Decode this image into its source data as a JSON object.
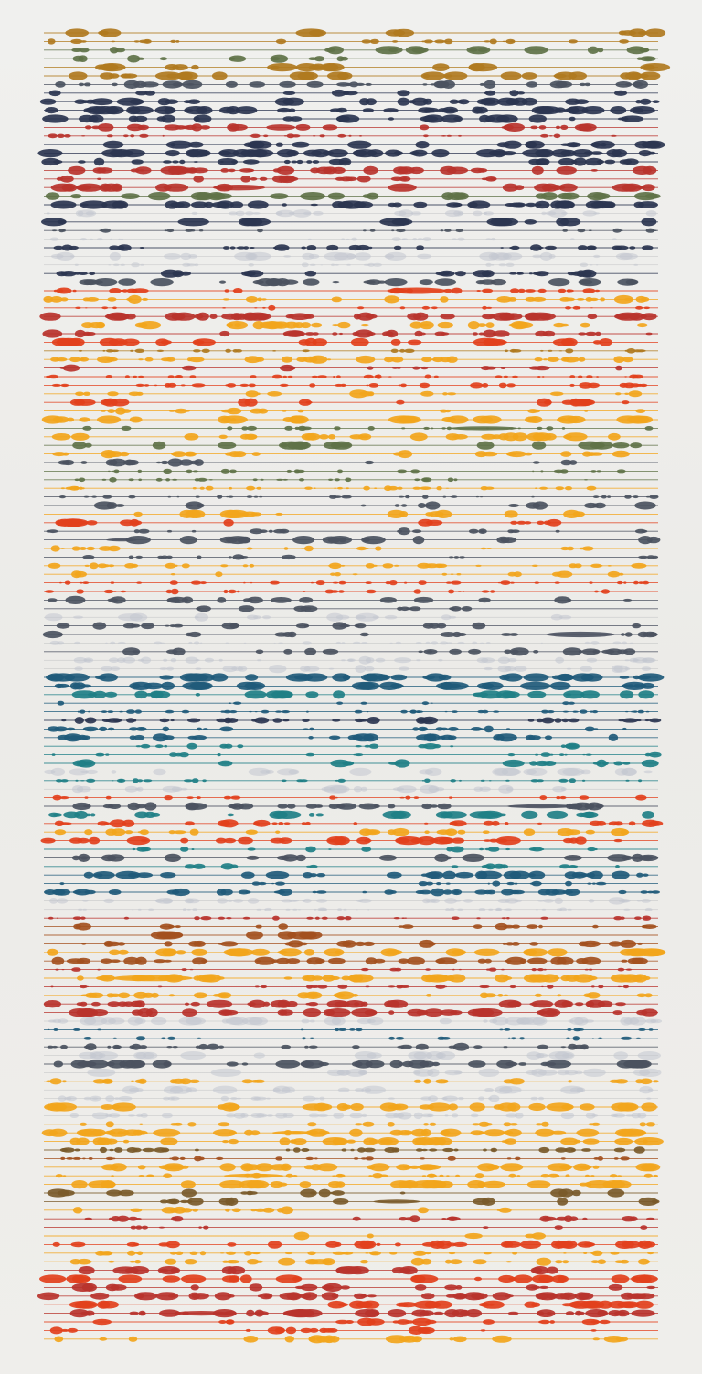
{
  "artwork": {
    "kind": "ink-on-paper",
    "description_visible_text": "",
    "palette": {
      "paper": "#efeeeb",
      "navy": "#2b3550",
      "slate": "#4b5260",
      "olive": "#5f7248",
      "ochre": "#b07a1f",
      "amber": "#f2a51c",
      "vermilion": "#e2401c",
      "crimson": "#b8332c",
      "rust": "#a3501e",
      "teal": "#1f7f86",
      "petrol": "#1f5a7a",
      "ghost": "#c3c6cf",
      "umber": "#7a5a2a"
    },
    "bands": [
      {
        "name": "upper-dark-greens",
        "colors": [
          "navy",
          "olive",
          "ochre",
          "slate"
        ]
      },
      {
        "name": "upper-warm-mix",
        "colors": [
          "amber",
          "crimson",
          "navy",
          "olive"
        ]
      },
      {
        "name": "middle-ghost-dark",
        "colors": [
          "ghost",
          "slate",
          "navy"
        ]
      },
      {
        "name": "middle-warm-orange",
        "colors": [
          "amber",
          "vermilion",
          "ochre",
          "crimson"
        ]
      },
      {
        "name": "red-accent-lines",
        "colors": [
          "vermilion",
          "amber"
        ]
      },
      {
        "name": "dark-blobs",
        "colors": [
          "slate",
          "olive",
          "amber"
        ]
      },
      {
        "name": "orange-red-band",
        "colors": [
          "amber",
          "vermilion",
          "slate"
        ]
      },
      {
        "name": "ghost-slate-band",
        "colors": [
          "ghost",
          "slate"
        ]
      },
      {
        "name": "teal-band",
        "colors": [
          "teal",
          "petrol",
          "ghost",
          "navy"
        ]
      },
      {
        "name": "mixed-orange-teal",
        "colors": [
          "amber",
          "vermilion",
          "slate",
          "teal"
        ]
      },
      {
        "name": "slate-ghost-lower",
        "colors": [
          "slate",
          "ghost",
          "petrol"
        ]
      },
      {
        "name": "warm-lower",
        "colors": [
          "amber",
          "crimson",
          "rust",
          "umber"
        ]
      },
      {
        "name": "dark-accent",
        "colors": [
          "slate",
          "petrol",
          "ghost"
        ]
      },
      {
        "name": "ghost-lower",
        "colors": [
          "ghost",
          "amber"
        ]
      },
      {
        "name": "warm-bottom",
        "colors": [
          "amber",
          "crimson",
          "rust",
          "umber"
        ]
      },
      {
        "name": "bright-bottom",
        "colors": [
          "amber",
          "vermilion",
          "crimson"
        ]
      }
    ]
  }
}
